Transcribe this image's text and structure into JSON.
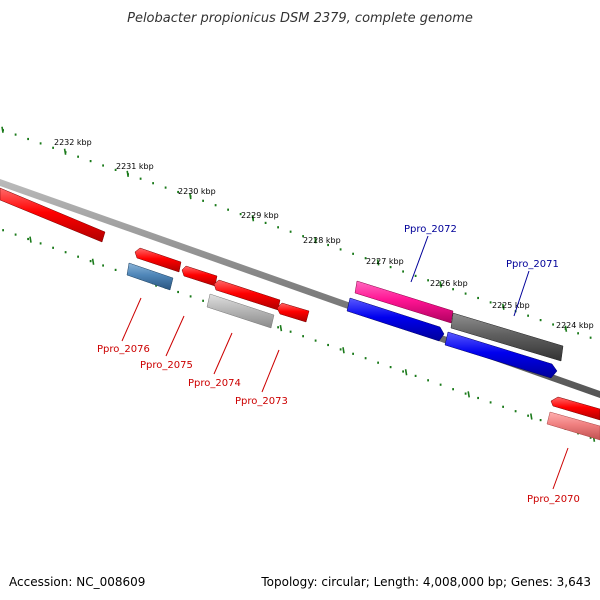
{
  "title": "Pelobacter propionicus DSM 2379, complete genome",
  "footer": {
    "accession": "Accession: NC_008609",
    "summary": "Topology: circular; Length: 4,008,000 bp; Genes: 3,643"
  },
  "scale": {
    "labels": [
      "2232 kbp",
      "2231 kbp",
      "2230 kbp",
      "2229 kbp",
      "2228 kbp",
      "2227 kbp",
      "2226 kbp",
      "2225 kbp",
      "2224 kbp"
    ]
  },
  "genes": [
    {
      "name": "Ppro_2072",
      "color": "#000099"
    },
    {
      "name": "Ppro_2071",
      "color": "#000099"
    },
    {
      "name": "Ppro_2076",
      "color": "#cc0000"
    },
    {
      "name": "Ppro_2075",
      "color": "#cc0000"
    },
    {
      "name": "Ppro_2074",
      "color": "#cc0000"
    },
    {
      "name": "Ppro_2073",
      "color": "#cc0000"
    },
    {
      "name": "Ppro_2070",
      "color": "#cc0000"
    }
  ],
  "colors": {
    "backbone": "#808080",
    "ticks": "#1a7a1a",
    "red_feature": "#ff0000",
    "blue_feature": "#0000ee",
    "magenta_feature": "#ff1493",
    "gray_feature": "#606060",
    "steel_feature": "#4f86b8",
    "light_gray_feature": "#b8b8b8",
    "pink_feature": "#f08080"
  }
}
